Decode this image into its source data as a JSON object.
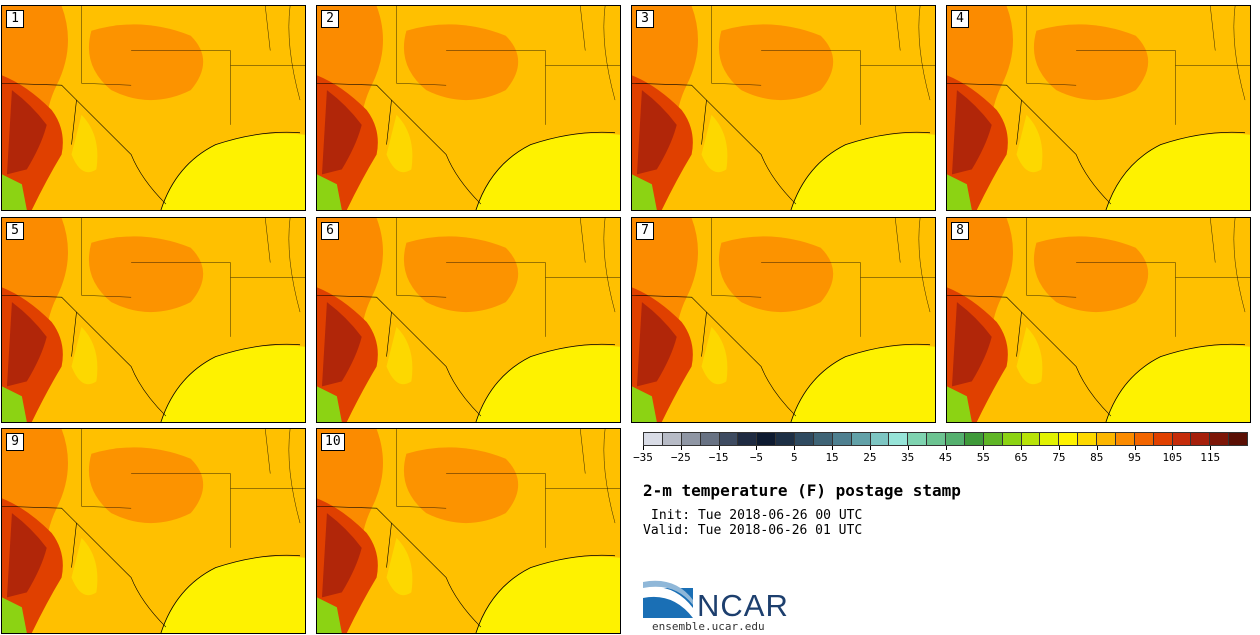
{
  "stamps": [
    "1",
    "2",
    "3",
    "4",
    "5",
    "6",
    "7",
    "8",
    "9",
    "10"
  ],
  "legend": {
    "colors": [
      "#d9dce6",
      "#b7bbc6",
      "#8f96a4",
      "#687283",
      "#3e4b61",
      "#1f2b42",
      "#0d1a30",
      "#1d2f45",
      "#2f4a60",
      "#3f6476",
      "#4f8090",
      "#62a1a8",
      "#7dc5c2",
      "#97e4d8",
      "#7fd3b0",
      "#6cc391",
      "#55b06e",
      "#3f9a3a",
      "#5fb526",
      "#8cd313",
      "#b8e308",
      "#e1f202",
      "#fef200",
      "#fdd800",
      "#fcb600",
      "#fb8b00",
      "#f26500",
      "#e04000",
      "#c52c0a",
      "#a51f0b",
      "#7d1607",
      "#5a0f04"
    ],
    "tick_labels": [
      "−35",
      "−25",
      "−15",
      "−5",
      "5",
      "15",
      "25",
      "35",
      "45",
      "55",
      "65",
      "75",
      "85",
      "95",
      "105",
      "115"
    ]
  },
  "title": "2-m temperature (F) postage stamp",
  "init": "Init: Tue 2018-06-26 00 UTC",
  "valid": "Valid: Tue 2018-06-26 01 UTC",
  "logo_text": "NCAR",
  "url": "ensemble.ucar.edu"
}
